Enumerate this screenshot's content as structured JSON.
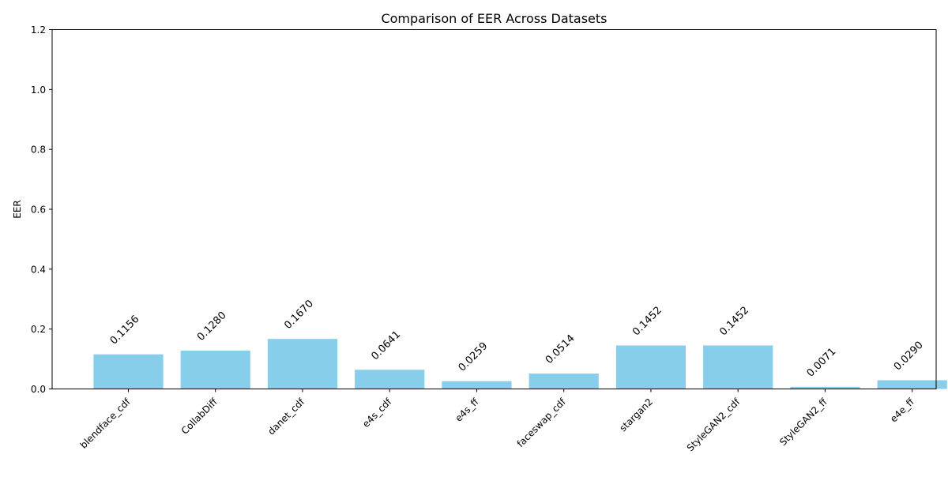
{
  "chart_data": {
    "type": "bar",
    "title": "Comparison of EER Across Datasets",
    "xlabel": "",
    "ylabel": "EER",
    "categories": [
      "blendface_cdf",
      "CollabDiff",
      "danet_cdf",
      "e4s_cdf",
      "e4s_ff",
      "faceswap_cdf",
      "stargan2",
      "StyleGAN2_cdf",
      "StyleGAN2_ff",
      "e4e_ff"
    ],
    "values": [
      0.1156,
      0.128,
      0.167,
      0.0641,
      0.0259,
      0.0514,
      0.1452,
      0.1452,
      0.0071,
      0.029
    ],
    "value_labels": [
      "0.1156",
      "0.1280",
      "0.1670",
      "0.0641",
      "0.0259",
      "0.0514",
      "0.1452",
      "0.1452",
      "0.0071",
      "0.0290"
    ],
    "ylim": [
      0,
      1.2
    ],
    "yticks": [
      "0.0",
      "0.2",
      "0.4",
      "0.6",
      "0.8",
      "1.0",
      "1.2"
    ],
    "grid": false,
    "bar_color": "#87CEEB"
  }
}
